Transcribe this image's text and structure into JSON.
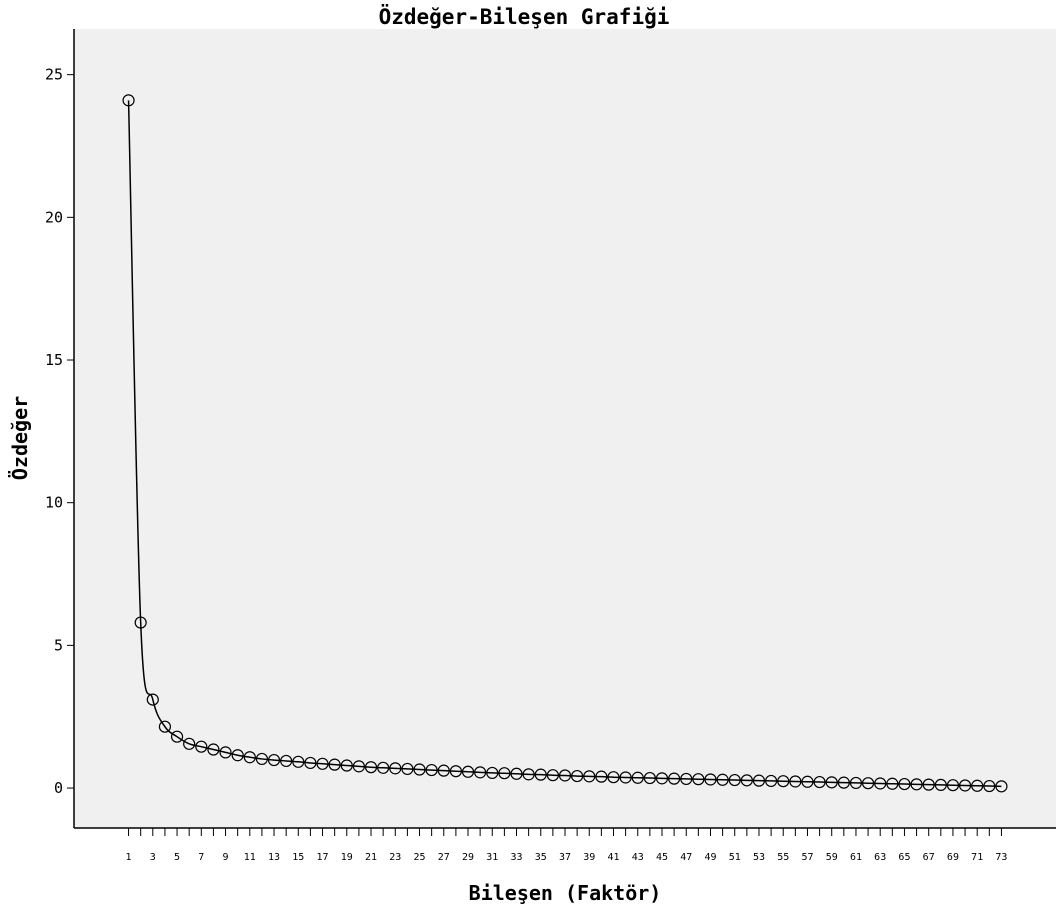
{
  "chart_data": {
    "type": "line",
    "title": "Özdeğer-Bileşen Grafiği",
    "xlabel": "Bileşen (Faktör)",
    "ylabel": "Özdeğer",
    "x": [
      1,
      2,
      3,
      4,
      5,
      6,
      7,
      8,
      9,
      10,
      11,
      12,
      13,
      14,
      15,
      16,
      17,
      18,
      19,
      20,
      21,
      22,
      23,
      24,
      25,
      26,
      27,
      28,
      29,
      30,
      31,
      32,
      33,
      34,
      35,
      36,
      37,
      38,
      39,
      40,
      41,
      42,
      43,
      44,
      45,
      46,
      47,
      48,
      49,
      50,
      51,
      52,
      53,
      54,
      55,
      56,
      57,
      58,
      59,
      60,
      61,
      62,
      63,
      64,
      65,
      66,
      67,
      68,
      69,
      70,
      71,
      72,
      73
    ],
    "x_tick_labels": [
      "1",
      "3",
      "5",
      "7",
      "9",
      "11",
      "13",
      "15",
      "17",
      "19",
      "21",
      "23",
      "25",
      "27",
      "29",
      "31",
      "33",
      "35",
      "37",
      "39",
      "41",
      "43",
      "45",
      "47",
      "49",
      "51",
      "53",
      "55",
      "57",
      "59",
      "61",
      "63",
      "65",
      "67",
      "69",
      "71",
      "73"
    ],
    "y_ticks": [
      0,
      5,
      10,
      15,
      20,
      25
    ],
    "ylim": [
      -1.4,
      26.6
    ],
    "xlim": [
      -3.5,
      77.5
    ],
    "marker": "open-circle",
    "colors": {
      "plot_background": "#f0f0f0",
      "line": "#000000",
      "marker_edge": "#000000"
    },
    "grid": false,
    "values": [
      24.1,
      5.8,
      3.1,
      2.15,
      1.8,
      1.55,
      1.45,
      1.35,
      1.25,
      1.15,
      1.08,
      1.02,
      0.98,
      0.95,
      0.92,
      0.88,
      0.85,
      0.82,
      0.79,
      0.76,
      0.73,
      0.71,
      0.69,
      0.67,
      0.65,
      0.63,
      0.61,
      0.59,
      0.57,
      0.55,
      0.53,
      0.52,
      0.5,
      0.48,
      0.47,
      0.45,
      0.44,
      0.42,
      0.41,
      0.4,
      0.38,
      0.37,
      0.36,
      0.35,
      0.34,
      0.33,
      0.32,
      0.31,
      0.3,
      0.29,
      0.28,
      0.27,
      0.26,
      0.25,
      0.24,
      0.23,
      0.22,
      0.21,
      0.2,
      0.19,
      0.18,
      0.17,
      0.16,
      0.15,
      0.14,
      0.13,
      0.12,
      0.11,
      0.1,
      0.09,
      0.08,
      0.07,
      0.06
    ]
  }
}
